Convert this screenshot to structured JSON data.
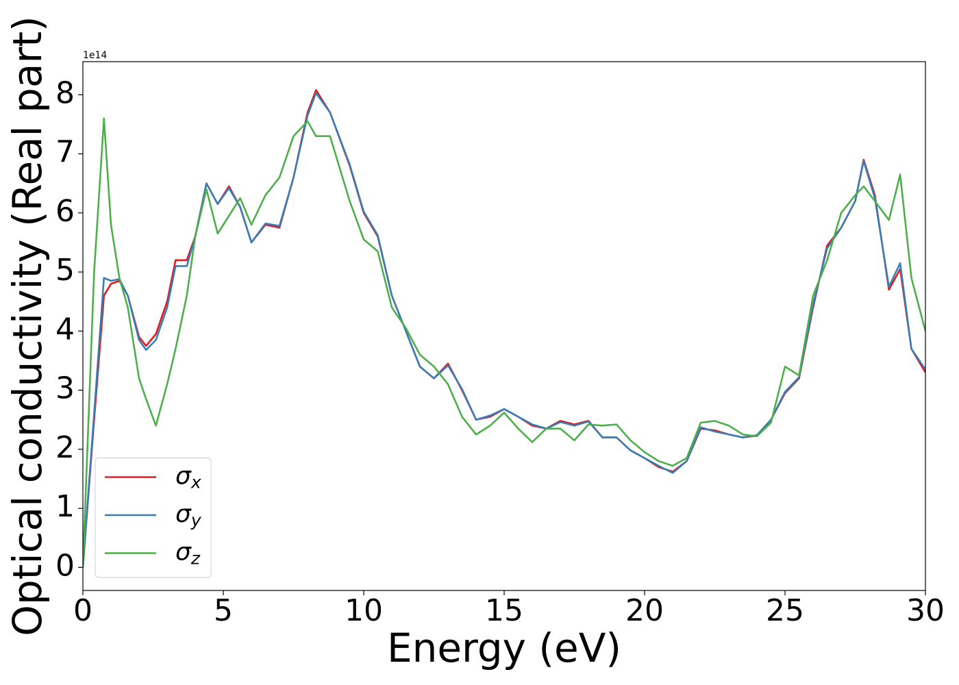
{
  "chart_data": {
    "type": "line",
    "x_label": "Energy (eV)",
    "y_label": "Optical conductivity (Real part)",
    "y_offset_label": "1e14",
    "xlim": [
      0,
      30
    ],
    "ylim": [
      -0.39,
      8.56
    ],
    "xticks": [
      0,
      5,
      10,
      15,
      20,
      25,
      30
    ],
    "yticks": [
      0,
      1,
      2,
      3,
      4,
      5,
      6,
      7,
      8
    ],
    "legend": "lower left",
    "x": [
      0,
      0.4,
      0.75,
      1.0,
      1.3,
      1.6,
      2.0,
      2.25,
      2.6,
      3.0,
      3.3,
      3.7,
      4.0,
      4.4,
      4.8,
      5.2,
      5.6,
      6.0,
      6.5,
      7.0,
      7.5,
      8.0,
      8.3,
      8.8,
      9.5,
      10,
      10.5,
      11,
      11.5,
      12,
      12.5,
      13,
      13.5,
      14,
      14.5,
      15,
      15.5,
      16,
      16.5,
      17,
      17.5,
      18,
      18.5,
      19,
      19.5,
      20,
      20.5,
      21,
      21.5,
      22,
      22.5,
      23,
      23.5,
      24,
      24.5,
      25,
      25.5,
      26,
      26.5,
      27,
      27.5,
      27.8,
      28.2,
      28.7,
      29.1,
      29.5,
      30
    ],
    "series": [
      {
        "name": "σx",
        "color": "#e41a1c",
        "values": [
          0,
          2.5,
          4.6,
          4.8,
          4.85,
          4.6,
          3.9,
          3.75,
          3.95,
          4.5,
          5.2,
          5.2,
          5.6,
          6.5,
          6.15,
          6.45,
          6.1,
          5.5,
          5.8,
          5.75,
          6.6,
          7.7,
          8.08,
          7.7,
          6.8,
          6.0,
          5.6,
          4.6,
          4.0,
          3.4,
          3.2,
          3.45,
          3.0,
          2.5,
          2.55,
          2.68,
          2.55,
          2.4,
          2.35,
          2.48,
          2.42,
          2.48,
          2.2,
          2.2,
          1.98,
          1.85,
          1.7,
          1.62,
          1.8,
          2.35,
          2.32,
          2.25,
          2.2,
          2.23,
          2.5,
          2.95,
          3.2,
          4.4,
          5.45,
          5.75,
          6.2,
          6.9,
          6.3,
          4.7,
          5.05,
          3.7,
          3.3
        ]
      },
      {
        "name": "σy",
        "color": "#377eb8",
        "values": [
          0,
          2.6,
          4.9,
          4.85,
          4.88,
          4.6,
          3.85,
          3.68,
          3.85,
          4.4,
          5.1,
          5.1,
          5.6,
          6.5,
          6.15,
          6.42,
          6.1,
          5.5,
          5.82,
          5.78,
          6.6,
          7.65,
          8.03,
          7.7,
          6.82,
          6.02,
          5.62,
          4.6,
          4.0,
          3.4,
          3.2,
          3.42,
          3.02,
          2.5,
          2.57,
          2.68,
          2.55,
          2.42,
          2.35,
          2.46,
          2.4,
          2.47,
          2.2,
          2.2,
          1.98,
          1.85,
          1.72,
          1.6,
          1.8,
          2.37,
          2.3,
          2.25,
          2.2,
          2.24,
          2.5,
          2.97,
          3.22,
          4.45,
          5.4,
          5.75,
          6.2,
          6.88,
          6.25,
          4.75,
          5.15,
          3.7,
          3.35
        ]
      },
      {
        "name": "σz",
        "color": "#4daf4a",
        "values": [
          0,
          5.0,
          7.6,
          5.8,
          4.9,
          4.4,
          3.2,
          2.85,
          2.4,
          3.1,
          3.7,
          4.6,
          5.6,
          6.4,
          5.65,
          5.95,
          6.25,
          5.8,
          6.3,
          6.6,
          7.3,
          7.55,
          7.3,
          7.3,
          6.2,
          5.55,
          5.35,
          4.4,
          4.05,
          3.6,
          3.4,
          3.1,
          2.55,
          2.25,
          2.4,
          2.62,
          2.35,
          2.12,
          2.35,
          2.35,
          2.15,
          2.42,
          2.4,
          2.42,
          2.15,
          1.95,
          1.8,
          1.72,
          1.85,
          2.45,
          2.48,
          2.4,
          2.25,
          2.22,
          2.45,
          3.4,
          3.25,
          4.6,
          5.2,
          6.0,
          6.3,
          6.45,
          6.2,
          5.88,
          6.65,
          4.9,
          4.0
        ]
      }
    ]
  }
}
